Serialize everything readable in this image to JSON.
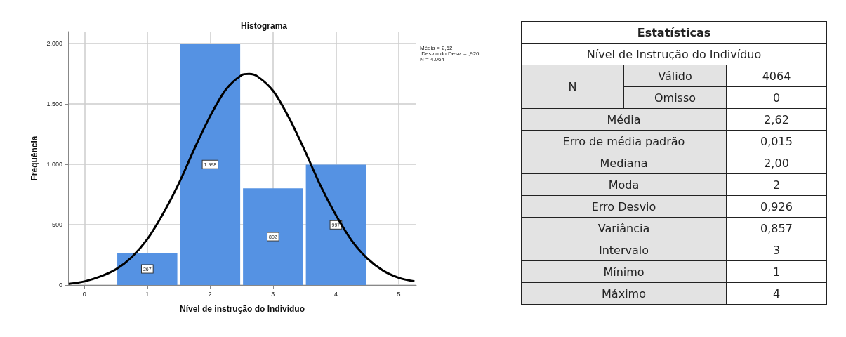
{
  "chart_data": [
    {
      "type": "histogram",
      "title": "Histograma",
      "xlabel": "Nível de instrução do Individuo",
      "ylabel": "Frequência",
      "bins": [
        0.5,
        1.5,
        2.5,
        3.5,
        4.5
      ],
      "series": [
        {
          "type": "histogram",
          "color": "#5592e3",
          "values": [
            267,
            1998,
            802,
            997
          ],
          "value_labels": [
            "267",
            "1.998",
            "802",
            "997"
          ]
        },
        {
          "type": "line",
          "color": "#000000",
          "x": [
            -0.25,
            0,
            0.25,
            0.5,
            0.75,
            1,
            1.25,
            1.5,
            1.75,
            2,
            2.25,
            2.5,
            2.62,
            2.75,
            3,
            3.25,
            3.5,
            3.75,
            4,
            4.25,
            4.5,
            4.75,
            5,
            5.25
          ],
          "values": [
            10,
            30,
            70,
            130,
            230,
            380,
            590,
            840,
            1130,
            1400,
            1620,
            1740,
            1750,
            1730,
            1610,
            1390,
            1120,
            830,
            580,
            370,
            220,
            120,
            60,
            30
          ]
        }
      ],
      "xlim": [
        -0.26,
        5.28
      ],
      "ylim": [
        0,
        2100
      ],
      "xticks": [
        0,
        1,
        2,
        3,
        4,
        5
      ],
      "yticks": [
        0,
        500,
        {
          "value": 1000,
          "label": "1.000"
        },
        {
          "value": 1500,
          "label": "1.500"
        },
        {
          "value": 2000,
          "label": "2.000"
        }
      ],
      "grid": true,
      "marker": "none",
      "line_style": "solid",
      "annotations": [
        "Média = 2,62",
        " Desvio do Desv. = ,926",
        "N = 4.064"
      ]
    },
    {
      "type": "other",
      "title": "Estatísticas",
      "subtitle": "Nível de Instrução do Indivíduo",
      "annotations": [
        "N",
        "Válido",
        "4064",
        "Omisso",
        "0",
        "Média",
        "2,62",
        "Erro de média padrão",
        "0,015",
        "Mediana",
        "2,00",
        "Moda",
        "2",
        "Erro Desvio",
        "0,926",
        "Variância",
        "0,857",
        "Intervalo",
        "3",
        "Mínimo",
        "1",
        "Máximo",
        "4"
      ]
    }
  ]
}
